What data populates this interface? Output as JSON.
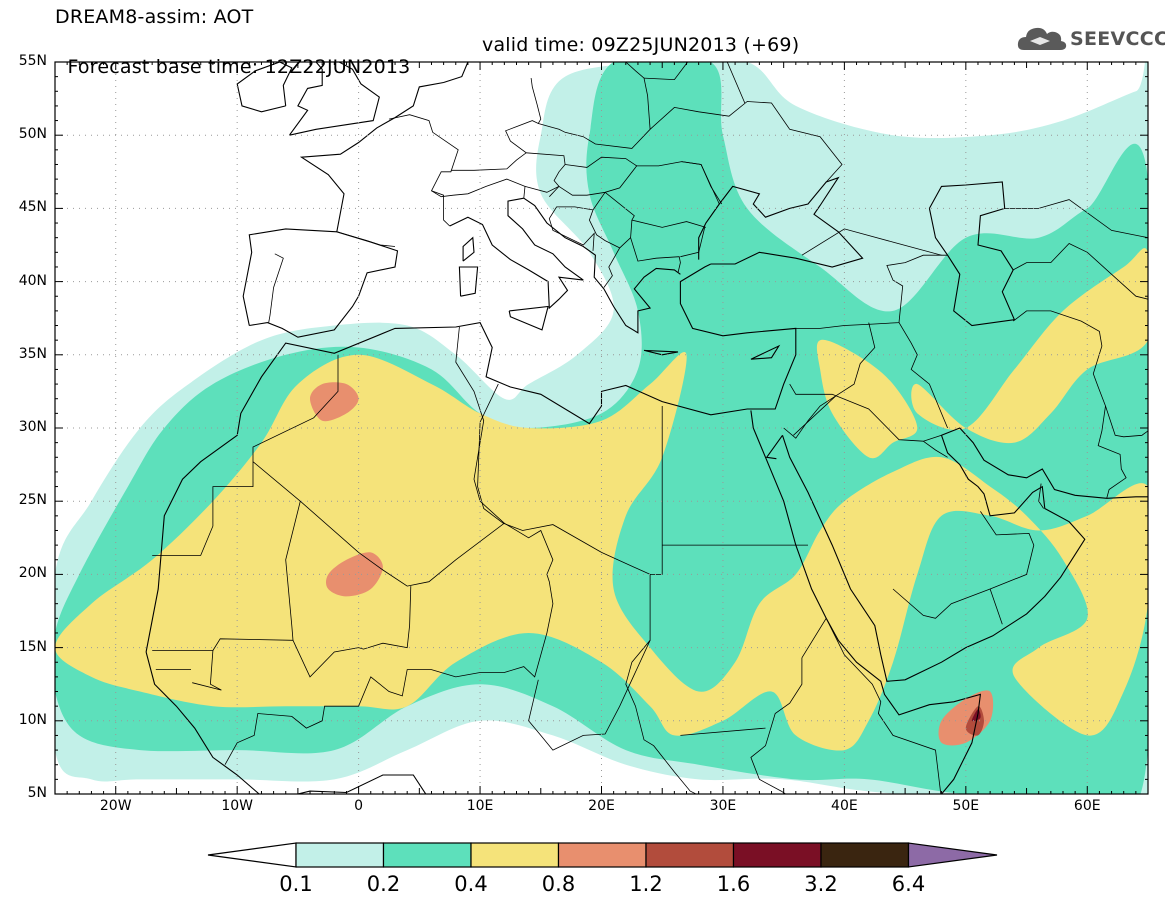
{
  "header": {
    "line1": "DREAM8-assim: AOT",
    "base_time": "Forecast base time: 12Z22JUN2013",
    "valid_time": "valid time: 09Z25JUN2013 (+69)"
  },
  "logo": {
    "text": "SEEVCCC",
    "icon": "cloud-icon"
  },
  "axes": {
    "lat_labels": [
      "55N",
      "50N",
      "45N",
      "40N",
      "35N",
      "30N",
      "25N",
      "20N",
      "15N",
      "10N",
      "5N"
    ],
    "lon_labels": [
      "20W",
      "10W",
      "0",
      "10E",
      "20E",
      "30E",
      "40E",
      "50E",
      "60E"
    ],
    "lon_range": [
      -25,
      65
    ],
    "lat_range": [
      5,
      55
    ],
    "grid": "dotted"
  },
  "legend": {
    "thresholds": [
      "0.1",
      "0.2",
      "0.4",
      "0.8",
      "1.2",
      "1.6",
      "3.2",
      "6.4"
    ],
    "colors": [
      "#c2f0e8",
      "#5de0bb",
      "#f5e37a",
      "#e88f6e",
      "#b24c3c",
      "#7a0f25",
      "#3a2510",
      "#8d6aa6"
    ],
    "below_color": "#ffffff"
  },
  "chart_data": {
    "type": "heatmap",
    "title": "DREAM8-assim: AOT",
    "quantity": "AOT",
    "xlabel": "",
    "ylabel": "",
    "x_range": [
      -25,
      65
    ],
    "y_range": [
      5,
      55
    ],
    "levels": [
      0.1,
      0.2,
      0.4,
      0.8,
      1.2,
      1.6,
      3.2,
      6.4
    ],
    "regions": [
      {
        "level": 0.1,
        "polygon": [
          [
            -25,
            20
          ],
          [
            -22,
            25
          ],
          [
            -18,
            30
          ],
          [
            -14,
            33
          ],
          [
            -8,
            36
          ],
          [
            -2,
            37
          ],
          [
            4,
            37
          ],
          [
            8,
            35
          ],
          [
            12,
            32
          ],
          [
            14,
            33
          ],
          [
            18,
            35
          ],
          [
            21,
            38
          ],
          [
            19,
            42
          ],
          [
            15,
            46
          ],
          [
            15,
            50
          ],
          [
            17,
            54
          ],
          [
            25,
            55
          ],
          [
            32,
            55
          ],
          [
            36,
            52
          ],
          [
            44,
            50
          ],
          [
            52,
            50
          ],
          [
            58,
            51
          ],
          [
            64,
            53
          ],
          [
            65,
            53
          ],
          [
            65,
            5
          ],
          [
            45,
            5
          ],
          [
            35,
            6
          ],
          [
            28,
            6
          ],
          [
            22,
            7
          ],
          [
            16,
            9
          ],
          [
            10,
            10
          ],
          [
            4,
            8
          ],
          [
            -2,
            6
          ],
          [
            -10,
            6
          ],
          [
            -18,
            6
          ],
          [
            -22,
            6
          ],
          [
            -25,
            8
          ]
        ]
      },
      {
        "level": 0.2,
        "polygon": [
          [
            -25,
            16
          ],
          [
            -23,
            20
          ],
          [
            -19,
            26
          ],
          [
            -16,
            30
          ],
          [
            -12,
            33
          ],
          [
            -6,
            35
          ],
          [
            0,
            35.5
          ],
          [
            6,
            34
          ],
          [
            10,
            31
          ],
          [
            14,
            30
          ],
          [
            20,
            31
          ],
          [
            23,
            34
          ],
          [
            23,
            38
          ],
          [
            21,
            42
          ],
          [
            19,
            46
          ],
          [
            19,
            50
          ],
          [
            21,
            55
          ],
          [
            29,
            55
          ],
          [
            30,
            50
          ],
          [
            32,
            45
          ],
          [
            38,
            41
          ],
          [
            44,
            38
          ],
          [
            50,
            43
          ],
          [
            56,
            43
          ],
          [
            60,
            45
          ],
          [
            65,
            47
          ],
          [
            65,
            8
          ],
          [
            60,
            5
          ],
          [
            50,
            5
          ],
          [
            42,
            6
          ],
          [
            36,
            6
          ],
          [
            28,
            7
          ],
          [
            22,
            8
          ],
          [
            16,
            11
          ],
          [
            10,
            12.5
          ],
          [
            4,
            11
          ],
          [
            -2,
            8
          ],
          [
            -10,
            8
          ],
          [
            -18,
            8
          ],
          [
            -23,
            9
          ],
          [
            -25,
            12
          ]
        ]
      },
      {
        "level": 0.4,
        "polygon": [
          [
            -25,
            15
          ],
          [
            -22,
            18
          ],
          [
            -17,
            21
          ],
          [
            -12,
            25
          ],
          [
            -8,
            29
          ],
          [
            -5,
            33
          ],
          [
            0,
            35
          ],
          [
            6,
            33
          ],
          [
            10,
            31
          ],
          [
            14,
            30
          ],
          [
            20,
            30.5
          ],
          [
            24,
            33
          ],
          [
            27,
            35
          ],
          [
            25,
            28
          ],
          [
            22,
            24
          ],
          [
            21,
            19
          ],
          [
            24,
            15
          ],
          [
            28,
            12
          ],
          [
            31,
            14
          ],
          [
            33,
            18
          ],
          [
            36,
            20
          ],
          [
            38,
            23
          ],
          [
            40,
            25
          ],
          [
            44,
            27
          ],
          [
            48,
            28
          ],
          [
            52,
            26
          ],
          [
            55,
            24
          ],
          [
            58,
            21
          ],
          [
            60,
            17
          ],
          [
            56,
            15
          ],
          [
            54,
            13
          ],
          [
            60,
            9
          ],
          [
            63,
            12
          ],
          [
            65,
            18
          ],
          [
            65,
            26
          ],
          [
            60,
            24
          ],
          [
            56,
            23
          ],
          [
            52,
            24
          ],
          [
            48,
            24
          ],
          [
            46,
            20
          ],
          [
            44,
            14
          ],
          [
            42,
            10
          ],
          [
            40,
            8
          ],
          [
            36,
            9
          ],
          [
            34,
            12
          ],
          [
            30,
            10
          ],
          [
            26,
            9
          ],
          [
            24,
            11
          ],
          [
            20,
            14
          ],
          [
            14,
            16
          ],
          [
            8,
            14
          ],
          [
            4,
            11
          ],
          [
            0,
            11
          ],
          [
            -6,
            11
          ],
          [
            -12,
            11
          ],
          [
            -18,
            12
          ],
          [
            -22,
            13
          ]
        ]
      },
      {
        "level": 0.4,
        "polygon": [
          [
            46,
            31
          ],
          [
            50,
            30
          ],
          [
            54,
            34
          ],
          [
            58,
            38
          ],
          [
            63,
            41
          ],
          [
            65,
            42
          ],
          [
            65,
            36
          ],
          [
            60,
            34
          ],
          [
            57,
            31
          ],
          [
            54,
            29
          ],
          [
            50,
            30
          ],
          [
            46,
            33
          ]
        ]
      },
      {
        "level": 0.4,
        "polygon": [
          [
            38,
            36
          ],
          [
            41,
            35
          ],
          [
            44,
            33
          ],
          [
            46,
            30
          ],
          [
            44,
            29
          ],
          [
            42,
            28
          ],
          [
            39,
            31
          ],
          [
            38,
            34
          ]
        ]
      },
      {
        "level": 0.8,
        "polygon": [
          [
            -4,
            32
          ],
          [
            -3,
            33
          ],
          [
            -1,
            33
          ],
          [
            0,
            32
          ],
          [
            -1,
            31
          ],
          [
            -3,
            30.5
          ]
        ]
      },
      {
        "level": 0.8,
        "polygon": [
          [
            -2.5,
            20
          ],
          [
            -1,
            21
          ],
          [
            1,
            21.5
          ],
          [
            2,
            20.5
          ],
          [
            1,
            19
          ],
          [
            -1,
            18.5
          ],
          [
            -2.5,
            19
          ]
        ]
      },
      {
        "level": 0.8,
        "polygon": [
          [
            48,
            10
          ],
          [
            50,
            11.5
          ],
          [
            52,
            12
          ],
          [
            52,
            10
          ],
          [
            50,
            8.5
          ],
          [
            48,
            8.5
          ]
        ]
      },
      {
        "level": 1.2,
        "polygon": [
          [
            50,
            9.5
          ],
          [
            51,
            11
          ],
          [
            51.5,
            10
          ],
          [
            51,
            9
          ]
        ]
      },
      {
        "level": 1.6,
        "polygon": [
          [
            50.5,
            10
          ],
          [
            51,
            10.8
          ],
          [
            51.2,
            10.2
          ]
        ]
      }
    ]
  }
}
